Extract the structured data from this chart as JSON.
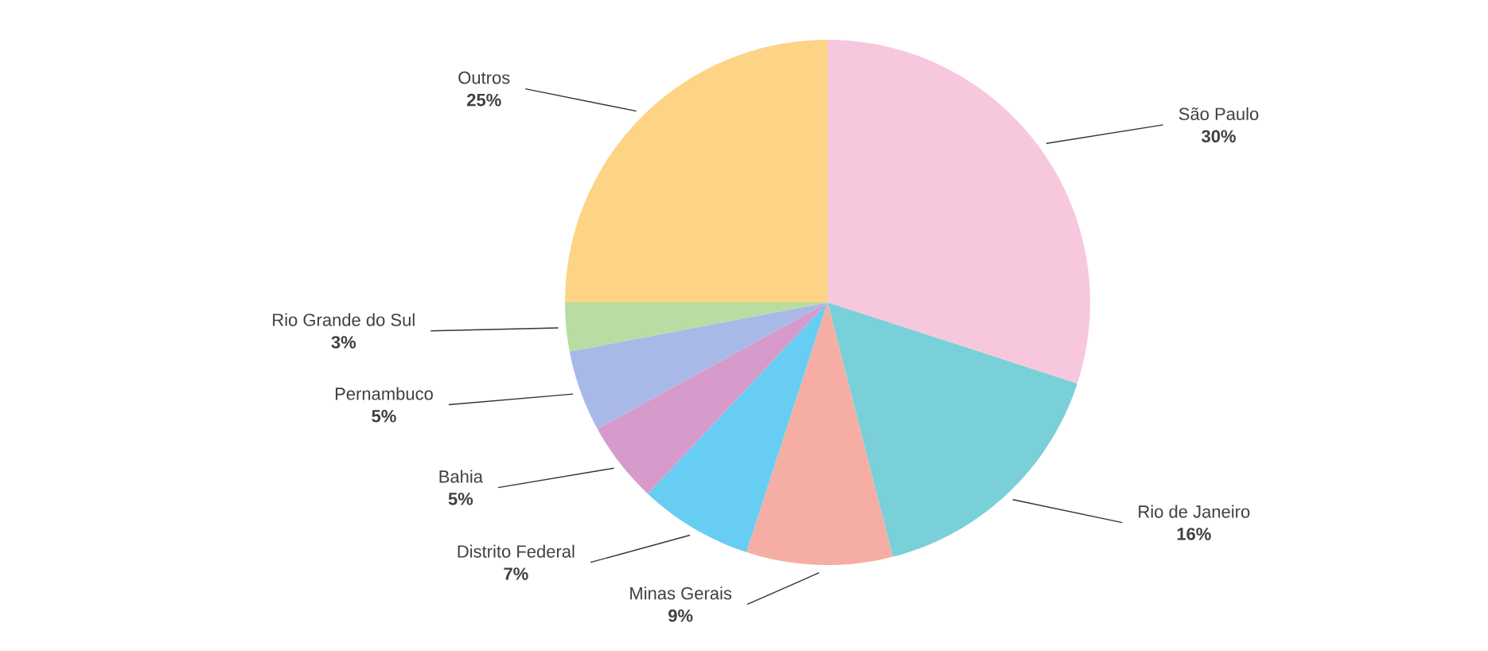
{
  "chart_data": {
    "type": "pie",
    "categories": [
      "São Paulo",
      "Rio de Janeiro",
      "Minas Gerais",
      "Distrito Federal",
      "Bahia",
      "Pernambuco",
      "Rio Grande do Sul",
      "Outros"
    ],
    "values": [
      30,
      16,
      9,
      7,
      5,
      5,
      3,
      25
    ],
    "value_labels": [
      "30%",
      "16%",
      "9%",
      "7%",
      "5%",
      "5%",
      "3%",
      "25%"
    ],
    "colors": [
      "#f7c8dd",
      "#79d0d9",
      "#f6ada3",
      "#68cdf2",
      "#d69bca",
      "#a8b9e8",
      "#b9dca2",
      "#fdd486"
    ]
  }
}
